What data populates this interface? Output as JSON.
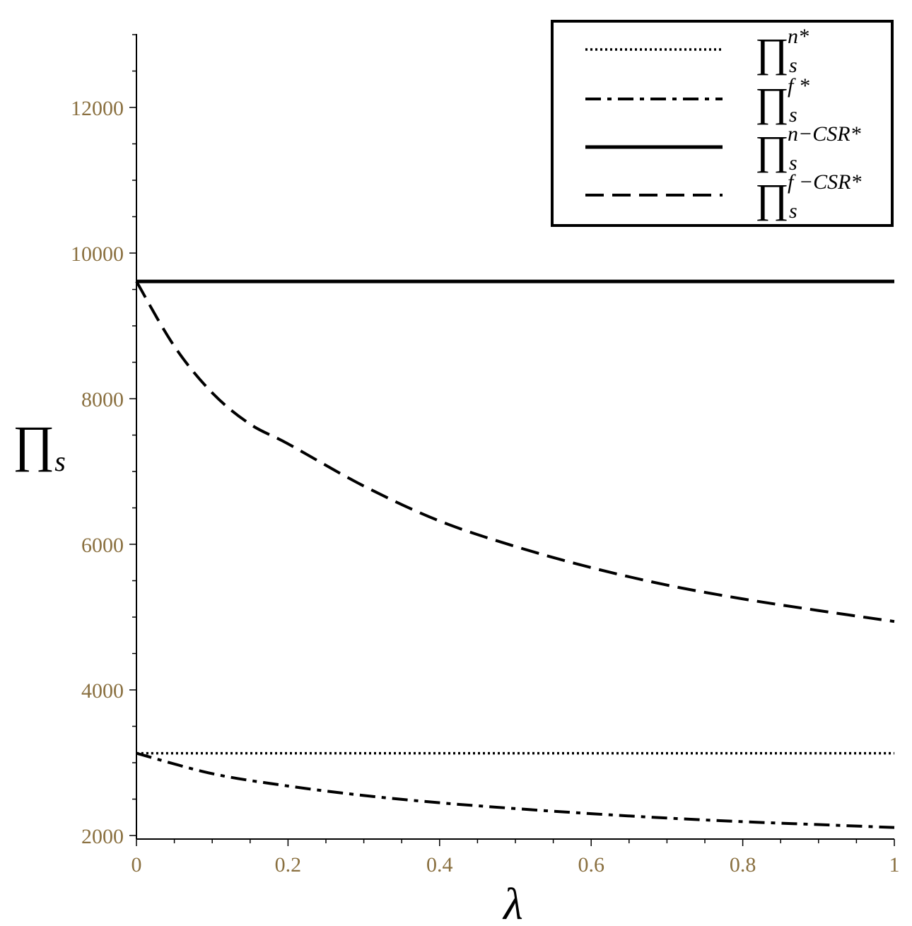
{
  "chart_data": {
    "type": "line",
    "xlabel": "λ",
    "ylabel": {
      "main": "∏",
      "sub": "s"
    },
    "xlim": [
      0,
      1
    ],
    "ylim": [
      2000,
      13000
    ],
    "xticks": [
      "0",
      "0.2",
      "0.4",
      "0.6",
      "0.8",
      "1"
    ],
    "yticks": [
      "2000",
      "4000",
      "6000",
      "8000",
      "10000",
      "12000"
    ],
    "legend_position": "top-right",
    "series": [
      {
        "id": "pi_n",
        "legend": {
          "base": "∏",
          "sup": "n*",
          "sub": "s"
        },
        "style": "dotted",
        "x": [
          0,
          0.2,
          0.4,
          0.6,
          0.8,
          1
        ],
        "y": [
          3130,
          3130,
          3130,
          3130,
          3130,
          3130
        ]
      },
      {
        "id": "pi_f",
        "legend": {
          "base": "∏",
          "sup": "f *",
          "sub": "s"
        },
        "style": "dashdot",
        "x": [
          0,
          0.1,
          0.2,
          0.3,
          0.4,
          0.5,
          0.6,
          0.7,
          0.8,
          0.9,
          1
        ],
        "y": [
          3130,
          2850,
          2680,
          2550,
          2450,
          2370,
          2300,
          2240,
          2190,
          2150,
          2110
        ]
      },
      {
        "id": "pi_n_csr",
        "legend": {
          "base": "∏",
          "sup": "n−CSR*",
          "sub": "s"
        },
        "style": "solid",
        "x": [
          0,
          0.2,
          0.4,
          0.6,
          0.8,
          1
        ],
        "y": [
          9610,
          9610,
          9610,
          9610,
          9610,
          9610
        ]
      },
      {
        "id": "pi_f_csr",
        "legend": {
          "base": "∏",
          "sup": "f −CSR*",
          "sub": "s"
        },
        "style": "dashed",
        "x": [
          0,
          0.05,
          0.1,
          0.15,
          0.2,
          0.3,
          0.4,
          0.5,
          0.6,
          0.7,
          0.8,
          0.9,
          1
        ],
        "y": [
          9610,
          8720,
          8080,
          7650,
          7380,
          6800,
          6320,
          5970,
          5680,
          5440,
          5250,
          5090,
          4940
        ]
      }
    ]
  }
}
